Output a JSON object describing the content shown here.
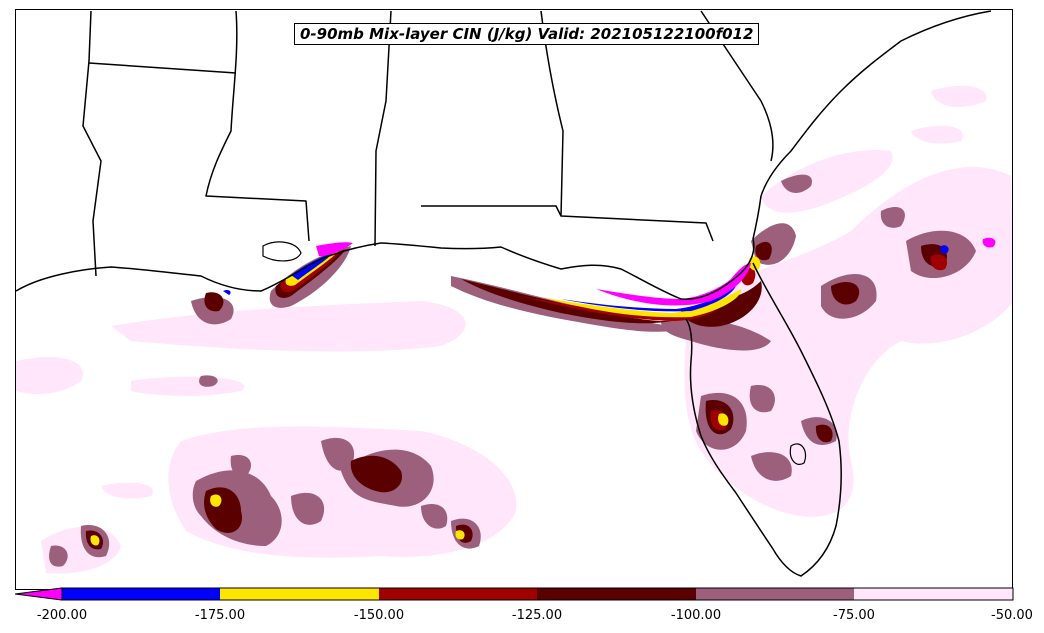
{
  "map": {
    "title": "0-90mb Mix-layer CIN (J/kg) Valid: 202105122100f012"
  },
  "colorbar": {
    "tick_labels": [
      "-200.00",
      "-175.00",
      "-150.00",
      "-125.00",
      "-100.00",
      "-75.00",
      "-50.00"
    ],
    "bins": [
      {
        "range": "< -200",
        "color": "#ff00ff"
      },
      {
        "range": "-200 to -175",
        "color": "#0000ff"
      },
      {
        "range": "-175 to -150",
        "color": "#ffe600"
      },
      {
        "range": "-150 to -125",
        "color": "#a00000"
      },
      {
        "range": "-125 to -100",
        "color": "#5a0000"
      },
      {
        "range": "-100 to -75",
        "color": "#9c5f7c"
      },
      {
        "range": "-75 to -50",
        "color": "#ffe6fa"
      }
    ]
  }
}
